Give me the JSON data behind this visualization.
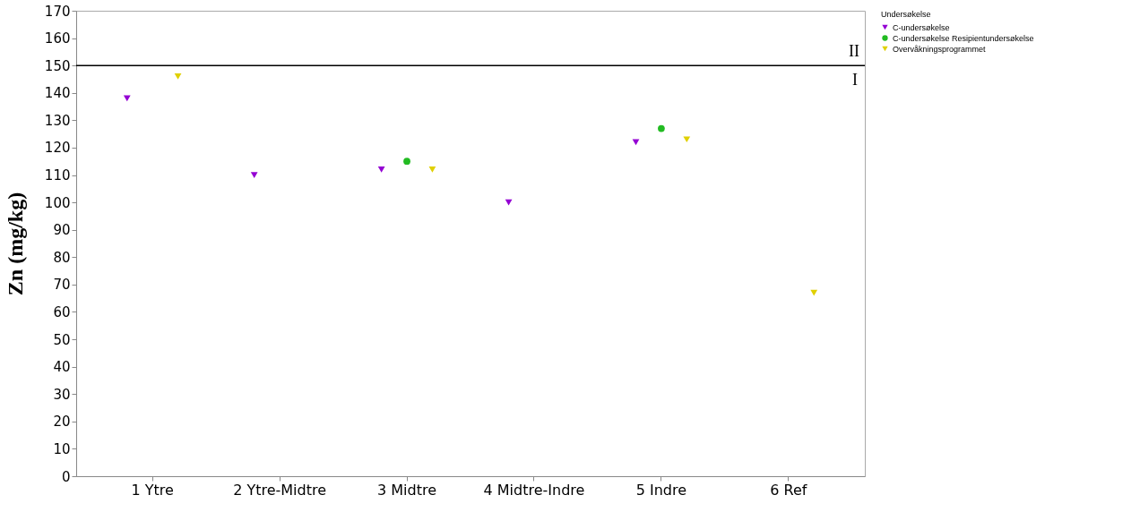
{
  "chart_data": {
    "type": "scatter",
    "ylabel": "Zn (mg/kg)",
    "legend_title": "Undersøkelse",
    "categories": [
      "1 Ytre",
      "2 Ytre-Midtre",
      "3 Midtre",
      "4 Midtre-Indre",
      "5 Indre",
      "6 Ref"
    ],
    "series": [
      {
        "name": "C-undersøkelse",
        "color": "#9400d3",
        "marker": "triangle",
        "values": [
          138,
          110,
          112,
          100,
          122,
          null
        ]
      },
      {
        "name": "C-undersøkelse Resipientundersøkelse",
        "color": "#22bb22",
        "marker": "circle",
        "values": [
          null,
          null,
          115,
          null,
          127,
          null
        ]
      },
      {
        "name": "Overvåkningsprogrammet",
        "color": "#e0d000",
        "marker": "triangle",
        "values": [
          146,
          null,
          112,
          null,
          123,
          67
        ]
      }
    ],
    "ylim": [
      0,
      170
    ],
    "yticks": [
      0,
      10,
      20,
      30,
      40,
      50,
      60,
      70,
      80,
      90,
      100,
      110,
      120,
      130,
      140,
      150,
      160,
      170
    ],
    "ref_lines": [
      {
        "axis": "y",
        "value": 150,
        "label": "II",
        "color": "#000000"
      }
    ],
    "annotations": [
      "I"
    ],
    "grid": false,
    "legend": "top right"
  }
}
